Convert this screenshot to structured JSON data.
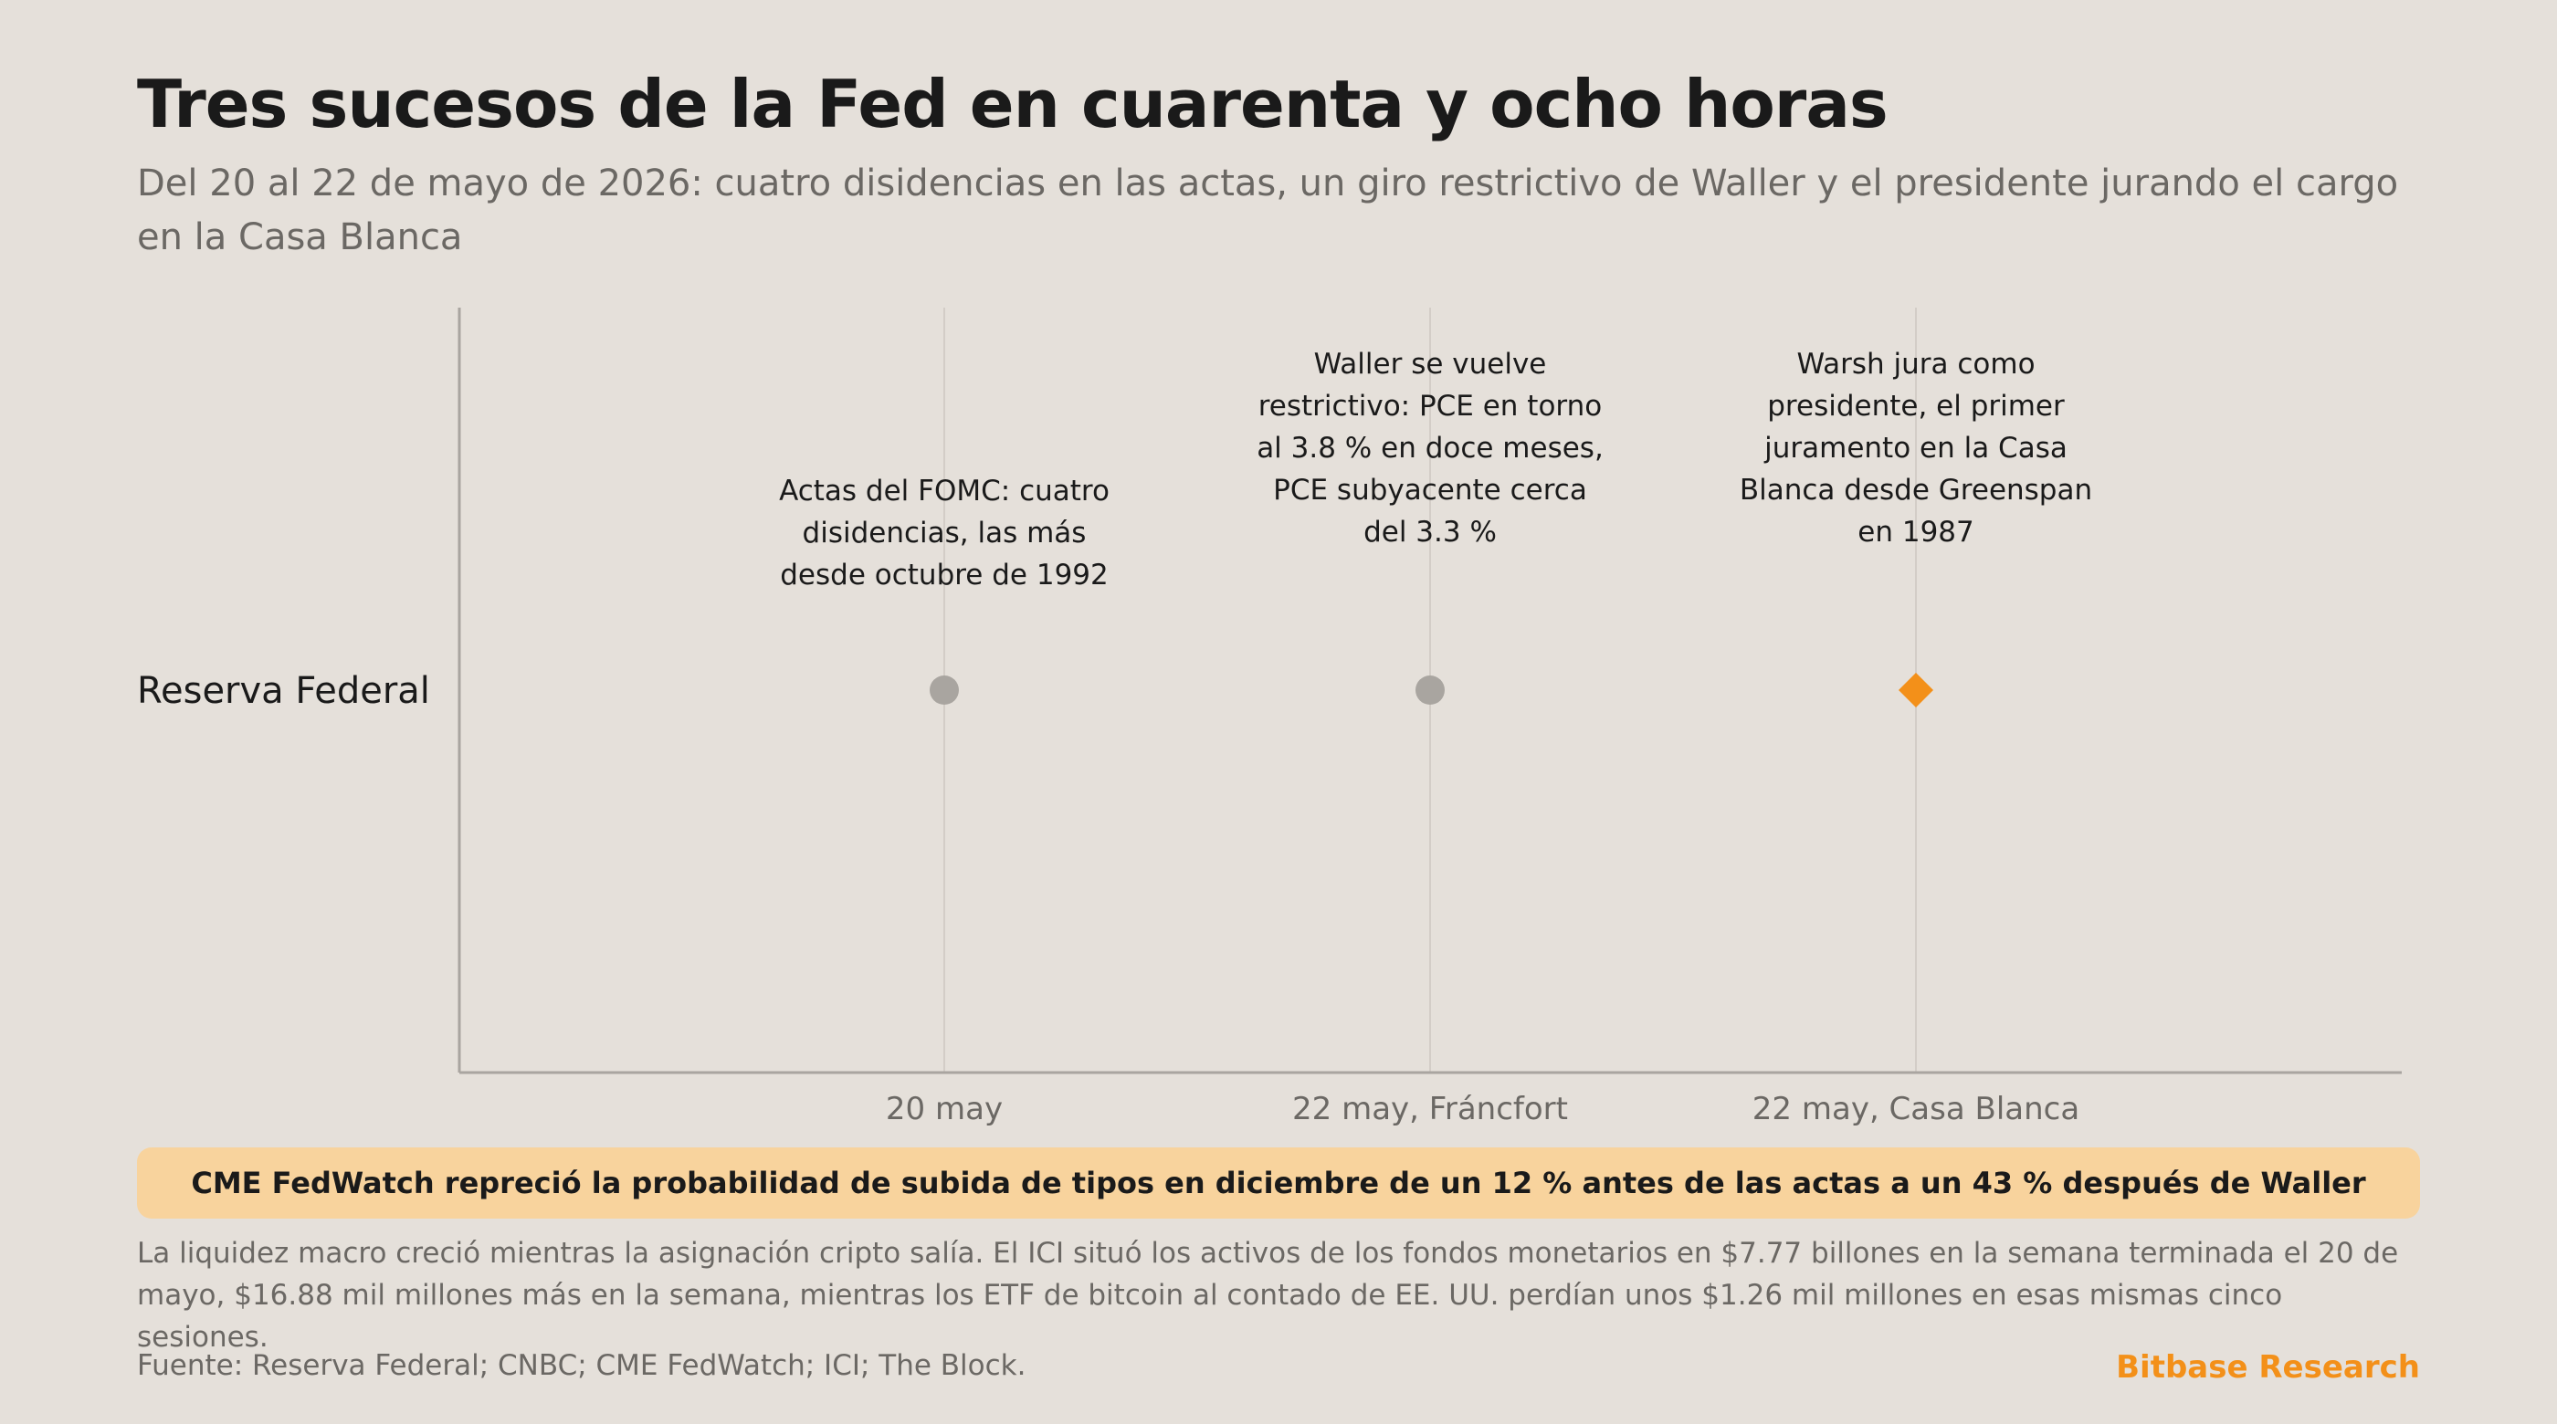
{
  "chart_data": {
    "type": "scatter",
    "title": "Tres sucesos de la Fed en cuarenta y ocho horas",
    "subtitle": "Del 20 al 22 de mayo de 2026: cuatro disidencias en las actas, un giro restrictivo de Waller y el presidente jurando el cargo en la Casa Blanca",
    "rows": [
      "Reserva Federal"
    ],
    "events": [
      {
        "tick": "20 may",
        "row": "Reserva Federal",
        "label": [
          "Actas del FOMC: cuatro",
          "disidencias, las más",
          "desde octubre de 1992"
        ],
        "marker": "circle",
        "highlight": false
      },
      {
        "tick": "22 may, Fráncfort",
        "row": "Reserva Federal",
        "label": [
          "Waller se vuelve",
          "restrictivo: PCE en torno",
          "al 3.8 % en doce meses,",
          "PCE subyacente cerca",
          "del 3.3 %"
        ],
        "marker": "circle",
        "highlight": false
      },
      {
        "tick": "22 may, Casa Blanca",
        "row": "Reserva Federal",
        "label": [
          "Warsh jura como",
          "presidente, el primer",
          "juramento en la Casa",
          "Blanca desde Greenspan",
          "en 1987"
        ],
        "marker": "diamond",
        "highlight": true
      }
    ],
    "grid": "vertical",
    "colors": {
      "event": "#a9a5a0",
      "highlight": "#f39019",
      "axis": "#a9a5a0",
      "gridline": "#d3cdc7"
    }
  },
  "banner": "CME FedWatch repreció la probabilidad de subida de tipos en diciembre de un 12 % antes de las actas a un 43 % después de Waller",
  "note": "La liquidez macro creció mientras la asignación cripto salía. El ICI situó los activos de los fondos monetarios en $7.77 billones en la semana terminada el 20 de mayo, $16.88 mil millones más en la semana, mientras los ETF de bitcoin al contado de EE. UU. perdían unos $1.26 mil millones en esas mismas cinco sesiones.",
  "source": "Fuente: Reserva Federal; CNBC; CME FedWatch; ICI; The Block.",
  "brand": "Bitbase Research"
}
